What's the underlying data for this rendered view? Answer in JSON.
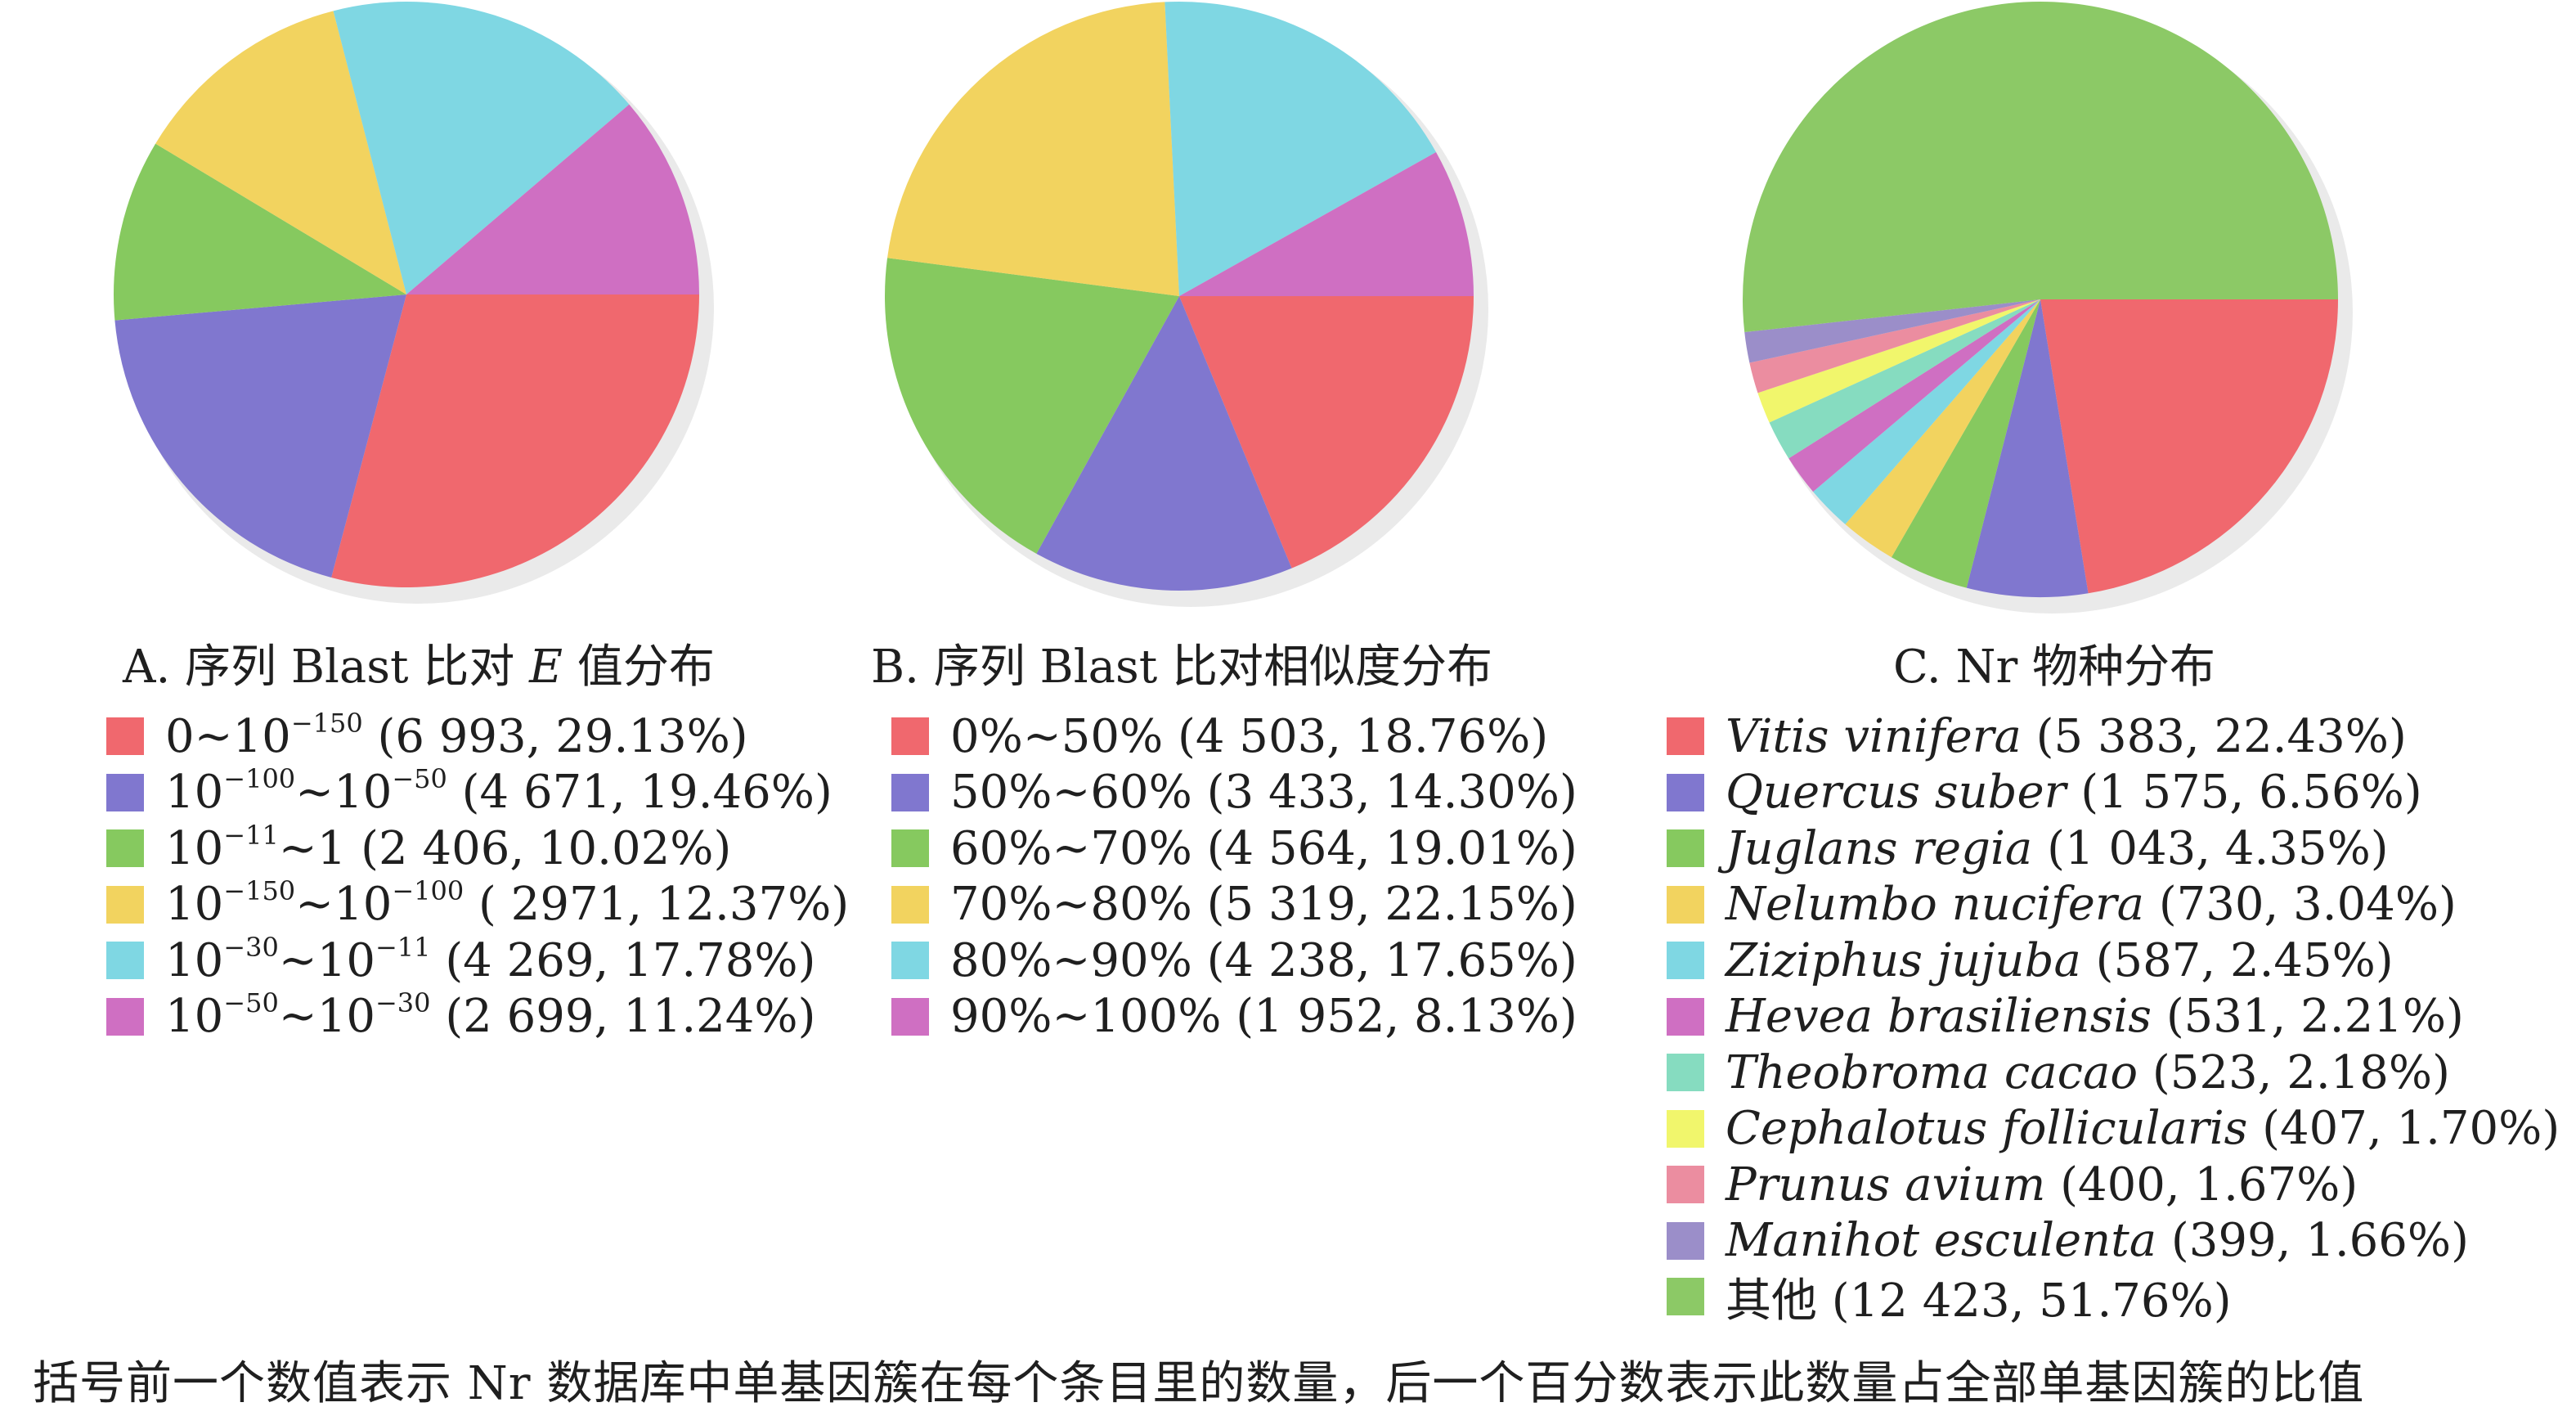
{
  "chart_data": [
    {
      "type": "pie",
      "title": "A. 序列 Blast 比对 E 值分布",
      "title_parts": {
        "prefix": "A. 序列 Blast 比对 ",
        "italic": "E",
        "suffix": " 值分布"
      },
      "slices": [
        {
          "label": "0~10^-150",
          "count": "6 993",
          "percent": "29.13%",
          "value": 29.13,
          "color": "#f0686e"
        },
        {
          "label": "10^-100~10^-50",
          "count": "4 671",
          "percent": "19.46%",
          "value": 19.46,
          "color": "#8077cf"
        },
        {
          "label": "10^-11~1",
          "count": "2 406",
          "percent": "10.02%",
          "value": 10.02,
          "color": "#86c95f"
        },
        {
          "label": "10^-150~10^-100",
          "count": "2971",
          "percent": "12.37%",
          "value": 12.37,
          "color": "#f2d35f"
        },
        {
          "label": "10^-30~10^-11",
          "count": "4 269",
          "percent": "17.78%",
          "value": 17.78,
          "color": "#7fd7e3"
        },
        {
          "label": "10^-50~10^-30",
          "count": "2 699",
          "percent": "11.24%",
          "value": 11.24,
          "color": "#cf6fc2"
        }
      ],
      "legend_text": [
        {
          "pre": "0~10",
          "sup1": "−150",
          "mid": "",
          "sup2": "",
          "post": " (6 993, 29.13%)"
        },
        {
          "pre": "10",
          "sup1": "−100",
          "mid": "~10",
          "sup2": "−50",
          "post": " (4 671, 19.46%)"
        },
        {
          "pre": "10",
          "sup1": "−11",
          "mid": "~1",
          "sup2": "",
          "post": " (2 406, 10.02%)"
        },
        {
          "pre": "10",
          "sup1": "−150",
          "mid": "~10",
          "sup2": "−100",
          "post": " ( 2971, 12.37%)"
        },
        {
          "pre": "10",
          "sup1": "−30",
          "mid": "~10",
          "sup2": "−11",
          "post": " (4 269, 17.78%)"
        },
        {
          "pre": "10",
          "sup1": "−50",
          "mid": "~10",
          "sup2": "−30",
          "post": " (2 699, 11.24%)"
        }
      ]
    },
    {
      "type": "pie",
      "title": "B. 序列 Blast 比对相似度分布",
      "slices": [
        {
          "label": "0%~50%",
          "count": "4 503",
          "percent": "18.76%",
          "value": 18.76,
          "color": "#f0686e"
        },
        {
          "label": "50%~60%",
          "count": "3 433",
          "percent": "14.30%",
          "value": 14.3,
          "color": "#8077cf"
        },
        {
          "label": "60%~70%",
          "count": "4 564",
          "percent": "19.01%",
          "value": 19.01,
          "color": "#86c95f"
        },
        {
          "label": "70%~80%",
          "count": "5 319",
          "percent": "22.15%",
          "value": 22.15,
          "color": "#f2d35f"
        },
        {
          "label": "80%~90%",
          "count": "4 238",
          "percent": "17.65%",
          "value": 17.65,
          "color": "#7fd7e3"
        },
        {
          "label": "90%~100%",
          "count": "1 952",
          "percent": "8.13%",
          "value": 8.13,
          "color": "#cf6fc2"
        }
      ],
      "legend_text": [
        "0%~50% (4 503, 18.76%)",
        "50%~60% (3 433, 14.30%)",
        "60%~70% (4 564, 19.01%)",
        "70%~80% (5 319, 22.15%)",
        "80%~90% (4 238, 17.65%)",
        "90%~100% (1 952, 8.13%)"
      ]
    },
    {
      "type": "pie",
      "title": "C. Nr 物种分布",
      "slices": [
        {
          "label": "Vitis vinifera",
          "count": "5 383",
          "percent": "22.43%",
          "value": 22.43,
          "color": "#f0686e"
        },
        {
          "label": "Quercus suber",
          "count": "1 575",
          "percent": "6.56%",
          "value": 6.56,
          "color": "#8077cf"
        },
        {
          "label": "Juglans regia",
          "count": "1 043",
          "percent": "4.35%",
          "value": 4.35,
          "color": "#86c95f"
        },
        {
          "label": "Nelumbo nucifera",
          "count": "730",
          "percent": "3.04%",
          "value": 3.04,
          "color": "#f2d35f"
        },
        {
          "label": "Ziziphus jujuba",
          "count": "587",
          "percent": "2.45%",
          "value": 2.45,
          "color": "#7fd7e3"
        },
        {
          "label": "Hevea brasiliensis",
          "count": "531",
          "percent": "2.21%",
          "value": 2.21,
          "color": "#cf6fc2"
        },
        {
          "label": "Theobroma cacao",
          "count": "523",
          "percent": "2.18%",
          "value": 2.18,
          "color": "#86dcc0"
        },
        {
          "label": "Cephalotus follicularis",
          "count": "407",
          "percent": "1.70%",
          "value": 1.7,
          "color": "#f1f66c"
        },
        {
          "label": "Prunus avium",
          "count": "400",
          "percent": "1.67%",
          "value": 1.67,
          "color": "#eb8da0"
        },
        {
          "label": "Manihot esculenta",
          "count": "399",
          "percent": "1.66%",
          "value": 1.66,
          "color": "#9b8ec9"
        },
        {
          "label": "其他",
          "count": "12 423",
          "percent": "51.76%",
          "value": 51.76,
          "color": "#8cc966"
        }
      ],
      "legend_text": [
        {
          "name": "Vitis vinifera",
          "italic": true,
          "post": " (5 383, 22.43%)"
        },
        {
          "name": "Quercus suber",
          "italic": true,
          "post": " (1 575, 6.56%)"
        },
        {
          "name": "Juglans regia",
          "italic": true,
          "post": " (1 043, 4.35%)"
        },
        {
          "name": "Nelumbo nucifera",
          "italic": true,
          "post": " (730, 3.04%)"
        },
        {
          "name": "Ziziphus jujuba",
          "italic": true,
          "post": " (587, 2.45%)"
        },
        {
          "name": "Hevea brasiliensis",
          "italic": true,
          "post": " (531, 2.21%)"
        },
        {
          "name": "Theobroma cacao",
          "italic": true,
          "post": " (523, 2.18%)"
        },
        {
          "name": "Cephalotus follicularis",
          "italic": true,
          "post": " (407, 1.70%)"
        },
        {
          "name": "Prunus avium",
          "italic": true,
          "post": " (400, 1.67%)"
        },
        {
          "name": "Manihot esculenta",
          "italic": true,
          "post": " (399, 1.66%)"
        },
        {
          "name": "其他",
          "italic": false,
          "post": " (12 423, 51.76%)"
        }
      ]
    }
  ],
  "footnote": "括号前一个数值表示 Nr 数据库中单基因簇在每个条目里的数量，后一个百分数表示此数量占全部单基因簇的比值"
}
